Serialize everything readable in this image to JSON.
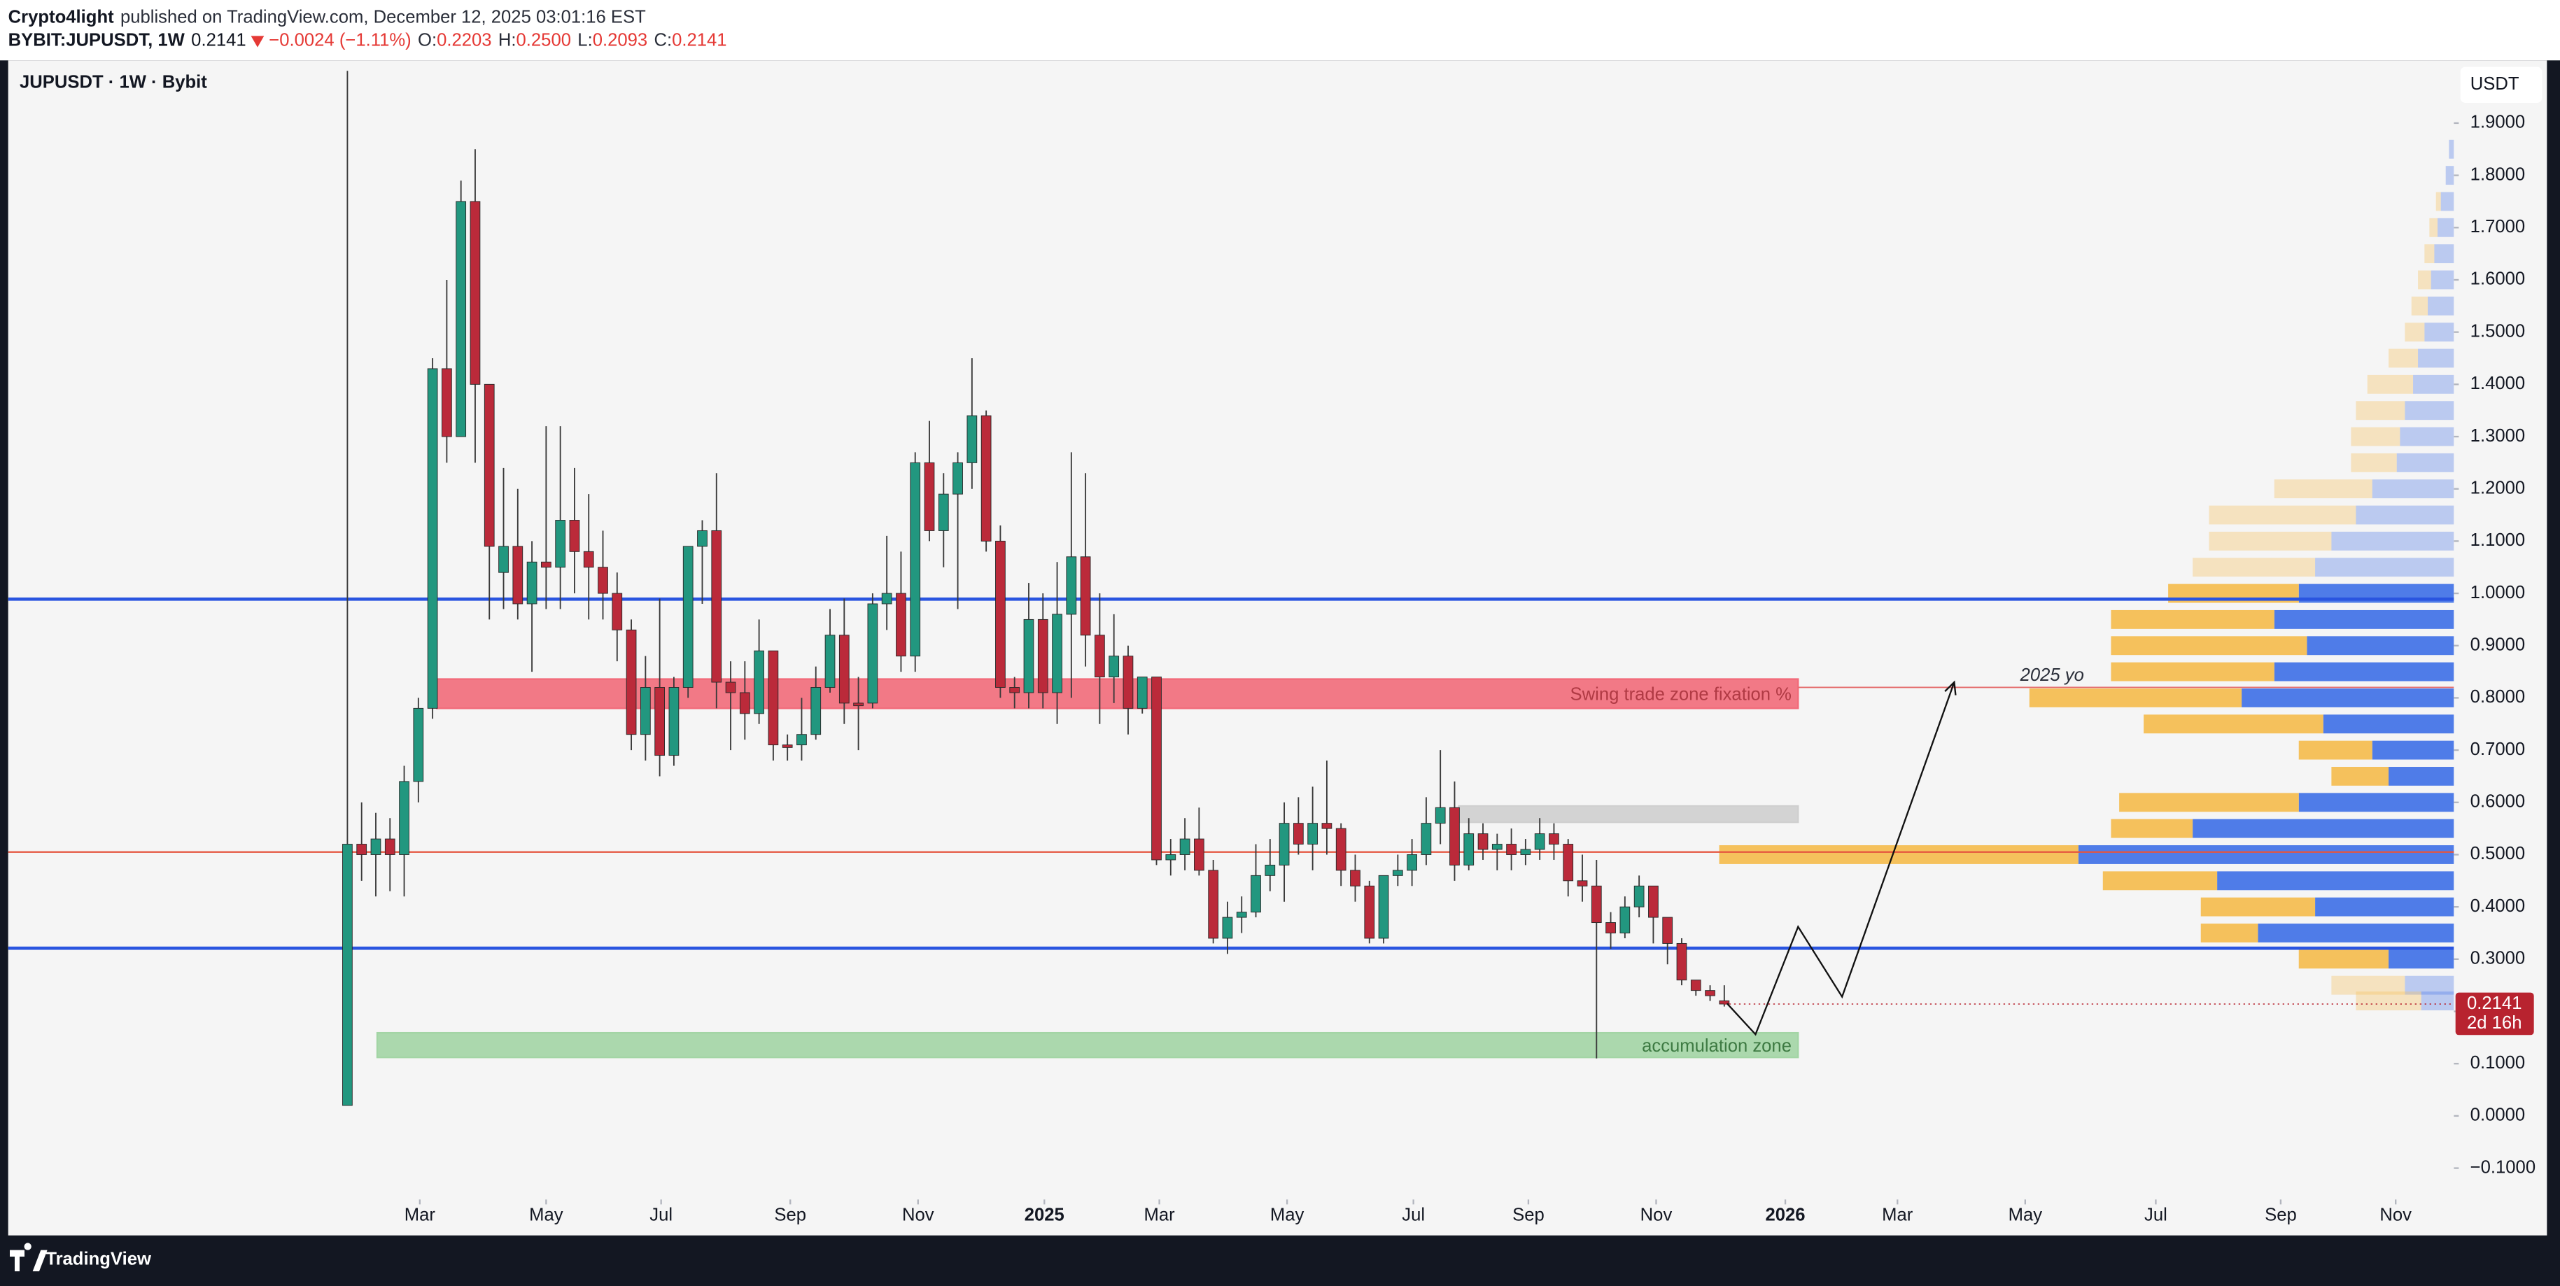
{
  "header": {
    "author": "Crypto4light",
    "published": "published on TradingView.com, December 12, 2025 03:01:16 EST",
    "symbol": "BYBIT:JUPUSDT, 1W",
    "last": "0.2141",
    "change": "−0.0024 (−1.11%)",
    "ohlc": [
      {
        "label": "O:",
        "value": "0.2203"
      },
      {
        "label": "H:",
        "value": "0.2500"
      },
      {
        "label": "L:",
        "value": "0.2093"
      },
      {
        "label": "C:",
        "value": "0.2141"
      }
    ]
  },
  "brand": "TradingView",
  "chart_data": {
    "type": "candlestick",
    "title": "JUPUSDT · 1W · Bybit",
    "currency": "USDT",
    "up_color": "#22977f",
    "down_color": "#bb2a3a",
    "ylim": [
      -0.16,
      2.02
    ],
    "yticks": [
      {
        "value": -0.1,
        "label": "−0.1000"
      },
      {
        "value": 0,
        "label": "0.0000"
      },
      {
        "value": 0.1,
        "label": "0.1000"
      },
      {
        "value": 0.2,
        "label": "0.2000"
      },
      {
        "value": 0.3,
        "label": "0.3000"
      },
      {
        "value": 0.4,
        "label": "0.4000"
      },
      {
        "value": 0.5,
        "label": "0.5000"
      },
      {
        "value": 0.6,
        "label": "0.6000"
      },
      {
        "value": 0.7,
        "label": "0.7000"
      },
      {
        "value": 0.8,
        "label": "0.8000"
      },
      {
        "value": 0.9,
        "label": "0.9000"
      },
      {
        "value": 1.0,
        "label": "1.0000"
      },
      {
        "value": 1.1,
        "label": "1.1000"
      },
      {
        "value": 1.2,
        "label": "1.2000"
      },
      {
        "value": 1.3,
        "label": "1.3000"
      },
      {
        "value": 1.4,
        "label": "1.4000"
      },
      {
        "value": 1.5,
        "label": "1.5000"
      },
      {
        "value": 1.6,
        "label": "1.6000"
      },
      {
        "value": 1.7,
        "label": "1.7000"
      },
      {
        "value": 1.8,
        "label": "1.8000"
      },
      {
        "value": 1.9,
        "label": "1.9000"
      }
    ],
    "xlim": [
      -23.9,
      148.4
    ],
    "xticks": [
      {
        "value": 5.1,
        "label": "Mar"
      },
      {
        "value": 14,
        "label": "May"
      },
      {
        "value": 22.1,
        "label": "Jul"
      },
      {
        "value": 31.2,
        "label": "Sep"
      },
      {
        "value": 40.2,
        "label": "Nov"
      },
      {
        "value": 49.1,
        "label": "2025"
      },
      {
        "value": 57.2,
        "label": "Mar"
      },
      {
        "value": 66.2,
        "label": "May"
      },
      {
        "value": 75.1,
        "label": "Jul"
      },
      {
        "value": 83.2,
        "label": "Sep"
      },
      {
        "value": 92.2,
        "label": "Nov"
      },
      {
        "value": 101.3,
        "label": "2026"
      },
      {
        "value": 109.2,
        "label": "Mar"
      },
      {
        "value": 118.2,
        "label": "May"
      },
      {
        "value": 127.4,
        "label": "Jul"
      },
      {
        "value": 136.2,
        "label": "Sep"
      },
      {
        "value": 144.3,
        "label": "Nov"
      }
    ],
    "candles": [
      [
        0.02,
        2.0,
        0.02,
        0.52
      ],
      [
        0.52,
        0.6,
        0.45,
        0.5
      ],
      [
        0.5,
        0.58,
        0.42,
        0.53
      ],
      [
        0.53,
        0.57,
        0.43,
        0.5
      ],
      [
        0.5,
        0.67,
        0.42,
        0.64
      ],
      [
        0.64,
        0.8,
        0.6,
        0.78
      ],
      [
        0.78,
        1.45,
        0.76,
        1.43
      ],
      [
        1.43,
        1.6,
        1.25,
        1.3
      ],
      [
        1.3,
        1.79,
        1.3,
        1.75
      ],
      [
        1.75,
        1.85,
        1.25,
        1.4
      ],
      [
        1.4,
        1.4,
        0.95,
        1.09
      ],
      [
        1.04,
        1.24,
        0.97,
        1.09
      ],
      [
        1.09,
        1.2,
        0.95,
        0.98
      ],
      [
        0.98,
        1.1,
        0.85,
        1.06
      ],
      [
        1.06,
        1.32,
        0.97,
        1.05
      ],
      [
        1.05,
        1.32,
        0.97,
        1.14
      ],
      [
        1.14,
        1.24,
        1.0,
        1.08
      ],
      [
        1.08,
        1.19,
        0.95,
        1.05
      ],
      [
        1.05,
        1.12,
        0.95,
        1.0
      ],
      [
        1.0,
        1.04,
        0.87,
        0.93
      ],
      [
        0.93,
        0.95,
        0.7,
        0.73
      ],
      [
        0.73,
        0.88,
        0.68,
        0.82
      ],
      [
        0.82,
        0.99,
        0.65,
        0.69
      ],
      [
        0.69,
        0.84,
        0.67,
        0.82
      ],
      [
        0.82,
        1.09,
        0.8,
        1.09
      ],
      [
        1.09,
        1.14,
        0.98,
        1.12
      ],
      [
        1.12,
        1.23,
        0.78,
        0.83
      ],
      [
        0.83,
        0.87,
        0.7,
        0.81
      ],
      [
        0.81,
        0.87,
        0.72,
        0.77
      ],
      [
        0.77,
        0.95,
        0.75,
        0.89
      ],
      [
        0.89,
        0.89,
        0.68,
        0.71
      ],
      [
        0.71,
        0.73,
        0.68,
        0.705
      ],
      [
        0.71,
        0.8,
        0.68,
        0.73
      ],
      [
        0.73,
        0.86,
        0.72,
        0.82
      ],
      [
        0.82,
        0.97,
        0.81,
        0.92
      ],
      [
        0.92,
        0.99,
        0.75,
        0.79
      ],
      [
        0.79,
        0.84,
        0.7,
        0.785
      ],
      [
        0.79,
        1.0,
        0.78,
        0.98
      ],
      [
        0.98,
        1.11,
        0.93,
        1.0
      ],
      [
        1.0,
        1.08,
        0.85,
        0.88
      ],
      [
        0.88,
        1.27,
        0.85,
        1.25
      ],
      [
        1.25,
        1.33,
        1.1,
        1.12
      ],
      [
        1.12,
        1.23,
        1.05,
        1.19
      ],
      [
        1.19,
        1.27,
        0.97,
        1.25
      ],
      [
        1.25,
        1.45,
        1.2,
        1.34
      ],
      [
        1.34,
        1.35,
        1.08,
        1.1
      ],
      [
        1.1,
        1.13,
        0.8,
        0.82
      ],
      [
        0.82,
        0.84,
        0.78,
        0.81
      ],
      [
        0.81,
        1.02,
        0.78,
        0.95
      ],
      [
        0.95,
        1.0,
        0.78,
        0.81
      ],
      [
        0.81,
        1.06,
        0.75,
        0.96
      ],
      [
        0.96,
        1.27,
        0.8,
        1.07
      ],
      [
        1.07,
        1.23,
        0.86,
        0.92
      ],
      [
        0.92,
        1.0,
        0.75,
        0.84
      ],
      [
        0.84,
        0.96,
        0.79,
        0.88
      ],
      [
        0.88,
        0.9,
        0.73,
        0.78
      ],
      [
        0.78,
        0.84,
        0.77,
        0.84
      ],
      [
        0.84,
        0.84,
        0.48,
        0.49
      ],
      [
        0.49,
        0.53,
        0.46,
        0.5
      ],
      [
        0.5,
        0.57,
        0.47,
        0.53
      ],
      [
        0.53,
        0.59,
        0.46,
        0.47
      ],
      [
        0.47,
        0.49,
        0.33,
        0.34
      ],
      [
        0.34,
        0.41,
        0.31,
        0.38
      ],
      [
        0.38,
        0.42,
        0.35,
        0.39
      ],
      [
        0.39,
        0.52,
        0.38,
        0.46
      ],
      [
        0.46,
        0.53,
        0.43,
        0.48
      ],
      [
        0.48,
        0.6,
        0.41,
        0.56
      ],
      [
        0.56,
        0.61,
        0.5,
        0.52
      ],
      [
        0.52,
        0.63,
        0.47,
        0.56
      ],
      [
        0.56,
        0.68,
        0.5,
        0.55
      ],
      [
        0.55,
        0.56,
        0.44,
        0.47
      ],
      [
        0.47,
        0.5,
        0.41,
        0.44
      ],
      [
        0.44,
        0.45,
        0.33,
        0.34
      ],
      [
        0.34,
        0.46,
        0.33,
        0.46
      ],
      [
        0.46,
        0.5,
        0.44,
        0.47
      ],
      [
        0.47,
        0.53,
        0.44,
        0.5
      ],
      [
        0.5,
        0.61,
        0.48,
        0.56
      ],
      [
        0.56,
        0.7,
        0.52,
        0.59
      ],
      [
        0.59,
        0.64,
        0.45,
        0.48
      ],
      [
        0.48,
        0.57,
        0.47,
        0.54
      ],
      [
        0.54,
        0.56,
        0.49,
        0.51
      ],
      [
        0.51,
        0.54,
        0.47,
        0.52
      ],
      [
        0.52,
        0.55,
        0.47,
        0.5
      ],
      [
        0.5,
        0.53,
        0.48,
        0.51
      ],
      [
        0.51,
        0.57,
        0.49,
        0.54
      ],
      [
        0.54,
        0.56,
        0.49,
        0.52
      ],
      [
        0.52,
        0.53,
        0.42,
        0.45
      ],
      [
        0.45,
        0.5,
        0.41,
        0.44
      ],
      [
        0.44,
        0.49,
        0.11,
        0.37
      ],
      [
        0.37,
        0.39,
        0.32,
        0.35
      ],
      [
        0.35,
        0.42,
        0.34,
        0.4
      ],
      [
        0.4,
        0.46,
        0.38,
        0.44
      ],
      [
        0.44,
        0.44,
        0.33,
        0.38
      ],
      [
        0.38,
        0.38,
        0.29,
        0.33
      ],
      [
        0.33,
        0.34,
        0.25,
        0.26
      ],
      [
        0.26,
        0.26,
        0.23,
        0.24
      ],
      [
        0.24,
        0.25,
        0.22,
        0.23
      ],
      [
        0.2203,
        0.25,
        0.2093,
        0.2141
      ]
    ],
    "levels": [
      {
        "value": 0.989,
        "color": "#2a55e0",
        "width": 2
      },
      {
        "value": 0.321,
        "color": "#2a55e0",
        "width": 2
      },
      {
        "value": 0.505,
        "color": "#e5553f",
        "width": 1
      }
    ],
    "yearly_open": {
      "label": "2025 yo",
      "value": 0.82,
      "from": 102.2,
      "color": "#e46a6a"
    },
    "zones": [
      {
        "label": "Swing trade zone fixation %",
        "x": [
          6.3,
          102.2
        ],
        "y": [
          0.78,
          0.836
        ],
        "color": "#f26b7a",
        "text_color": "#b03a44"
      },
      {
        "x": [
          78.3,
          102.2
        ],
        "y": [
          0.562,
          0.593
        ],
        "color": "#cfcfcf"
      },
      {
        "label": "accumulation zone",
        "x": [
          2.1,
          102.2
        ],
        "y": [
          0.112,
          0.159
        ],
        "color": "#a3d5a5",
        "text_color": "#3d7a42"
      }
    ],
    "projection": {
      "x": [
        97.2,
        99.2,
        102.2,
        105.3,
        113.2
      ],
      "y": [
        0.215,
        0.156,
        0.362,
        0.228,
        0.83
      ]
    },
    "last_price": {
      "value": 0.2141,
      "label": "0.2141",
      "countdown": "2d 16h",
      "color": "#b8232f"
    },
    "volume_profile": {
      "value_area": [
        0.3,
        1.0
      ],
      "buy_color": "#f5c15c",
      "sell_color": "#4f7ce8",
      "levels": [
        1.85,
        1.8,
        1.75,
        1.7,
        1.65,
        1.6,
        1.55,
        1.5,
        1.45,
        1.4,
        1.35,
        1.3,
        1.25,
        1.2,
        1.15,
        1.1,
        1.05,
        1.0,
        0.95,
        0.9,
        0.85,
        0.8,
        0.75,
        0.7,
        0.65,
        0.6,
        0.55,
        0.5,
        0.45,
        0.4,
        0.35,
        0.3,
        0.25,
        0.22
      ],
      "sell": [
        3,
        5,
        8,
        10,
        12,
        14,
        16,
        18,
        22,
        25,
        30,
        33,
        35,
        50,
        60,
        75,
        85,
        95,
        110,
        90,
        110,
        130,
        80,
        50,
        40,
        95,
        160,
        230,
        145,
        85,
        120,
        40,
        30,
        20
      ],
      "buy": [
        0,
        0,
        3,
        5,
        6,
        8,
        10,
        12,
        18,
        28,
        30,
        30,
        28,
        60,
        90,
        75,
        75,
        80,
        100,
        120,
        100,
        130,
        110,
        45,
        35,
        110,
        50,
        220,
        70,
        70,
        35,
        55,
        45,
        40
      ]
    }
  }
}
